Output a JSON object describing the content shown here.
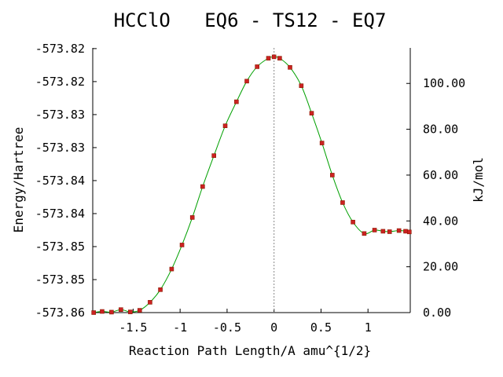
{
  "chart_data": {
    "type": "line",
    "title": "HCClO   EQ6 - TS12 - EQ7",
    "xlabel": "Reaction Path Length/A amu^{1/2}",
    "ylabel_left": "Energy/Hartree",
    "ylabel_right": "kJ/mol",
    "xlim": [
      -1.93,
      1.45
    ],
    "ylim_kj": [
      0,
      115.5
    ],
    "x_ticks": [
      -1.5,
      -1,
      -0.5,
      0,
      0.5,
      1
    ],
    "x_tick_labels": [
      "-1.5",
      "-1",
      "-0.5",
      "0",
      "0.5",
      "1"
    ],
    "left_ticks_kj": [
      0,
      14.4,
      28.8,
      43.2,
      57.6,
      72.0,
      86.4,
      100.8,
      115.2
    ],
    "left_tick_labels": [
      "-573.86",
      "-573.85",
      "-573.85",
      "-573.84",
      "-573.84",
      "-573.83",
      "-573.83",
      "-573.82",
      "-573.82"
    ],
    "right_ticks_kj": [
      0,
      20,
      40,
      60,
      80,
      100
    ],
    "right_tick_labels": [
      "0.00",
      "20.00",
      "40.00",
      "60.00",
      "80.00",
      "100.00"
    ],
    "ts_x": 0,
    "colors": {
      "curve": "#00a000",
      "points": "#cc2222",
      "ts_line": "#888888"
    },
    "series": [
      {
        "x": [
          -1.92,
          -1.83,
          -1.73,
          -1.63,
          -1.53,
          -1.43,
          -1.32,
          -1.21,
          -1.09,
          -0.98,
          -0.87,
          -0.76,
          -0.64,
          -0.52,
          -0.4,
          -0.29,
          -0.18,
          -0.06,
          0.0,
          0.06,
          0.17,
          0.29,
          0.4,
          0.51,
          0.62,
          0.73,
          0.84,
          0.96,
          1.07,
          1.16,
          1.23,
          1.33,
          1.4,
          1.44
        ],
        "y": [
          0.0,
          0.5,
          0.2,
          1.3,
          0.3,
          1.0,
          4.5,
          10.0,
          19.0,
          29.5,
          41.5,
          55.0,
          68.5,
          81.5,
          92.0,
          101.0,
          107.3,
          111.0,
          111.6,
          111.0,
          107.0,
          99.0,
          87.0,
          74.0,
          60.0,
          48.0,
          39.5,
          34.5,
          36.0,
          35.5,
          35.3,
          35.8,
          35.5,
          35.2
        ]
      }
    ]
  }
}
